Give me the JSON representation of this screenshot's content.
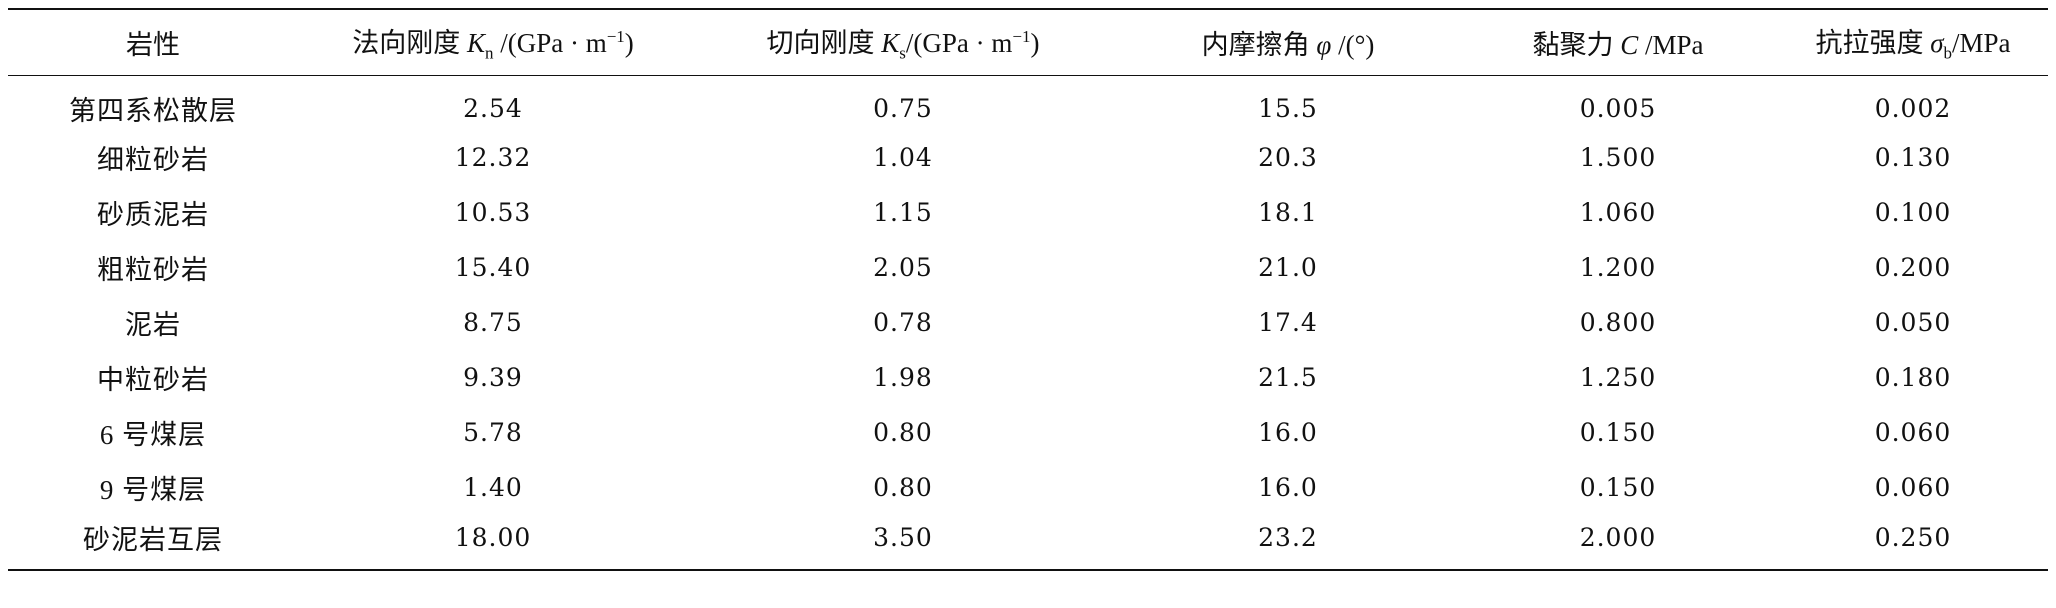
{
  "table": {
    "header": [
      {
        "label": "岩性"
      },
      {
        "label": "法向刚度 ",
        "symbol": "K",
        "subscript": "n",
        "unit": " /(GPa · m",
        "superscript": "−1",
        "unit_close": ")"
      },
      {
        "label": "切向刚度 ",
        "symbol": "K",
        "subscript": "s",
        "unit": "/(GPa · m",
        "superscript": "−1",
        "unit_close": ")"
      },
      {
        "label": "内摩擦角 ",
        "symbol": "φ",
        "unit": " /(°)"
      },
      {
        "label": "黏聚力 ",
        "symbol": "C",
        "unit": " /MPa"
      },
      {
        "label": "抗拉强度 ",
        "symbol": "σ",
        "subscript": "b",
        "unit": "/MPa"
      }
    ],
    "rows": [
      [
        "第四系松散层",
        "2.54",
        "0.75",
        "15.5",
        "0.005",
        "0.002"
      ],
      [
        "细粒砂岩",
        "12.32",
        "1.04",
        "20.3",
        "1.500",
        "0.130"
      ],
      [
        "砂质泥岩",
        "10.53",
        "1.15",
        "18.1",
        "1.060",
        "0.100"
      ],
      [
        "粗粒砂岩",
        "15.40",
        "2.05",
        "21.0",
        "1.200",
        "0.200"
      ],
      [
        "泥岩",
        "8.75",
        "0.78",
        "17.4",
        "0.800",
        "0.050"
      ],
      [
        "中粒砂岩",
        "9.39",
        "1.98",
        "21.5",
        "1.250",
        "0.180"
      ],
      [
        "6 号煤层",
        "5.78",
        "0.80",
        "16.0",
        "0.150",
        "0.060"
      ],
      [
        "9 号煤层",
        "1.40",
        "0.80",
        "16.0",
        "0.150",
        "0.060"
      ],
      [
        "砂泥岩互层",
        "18.00",
        "3.50",
        "23.2",
        "2.000",
        "0.250"
      ]
    ]
  }
}
